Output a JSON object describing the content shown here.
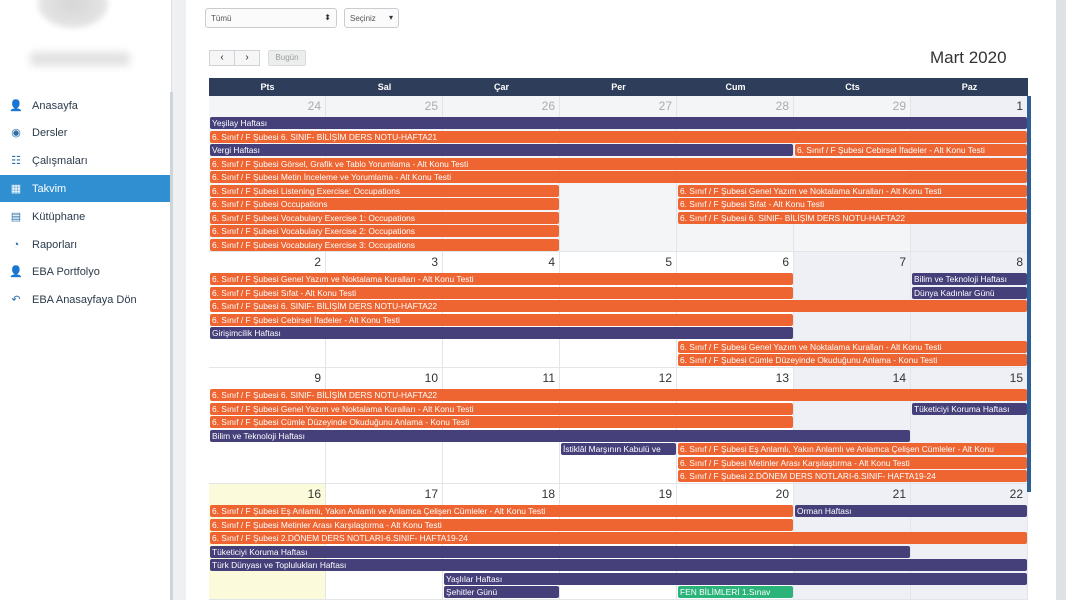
{
  "sidebar": {
    "items": [
      {
        "label": "Anasayfa",
        "icon": "user-icon",
        "glyph": "👤"
      },
      {
        "label": "Dersler",
        "icon": "play-circle-icon",
        "glyph": "◉"
      },
      {
        "label": "Çalışmaları",
        "icon": "search-list-icon",
        "glyph": "☷"
      },
      {
        "label": "Takvim",
        "icon": "calendar-icon",
        "glyph": "▦",
        "active": true
      },
      {
        "label": "Kütüphane",
        "icon": "library-icon",
        "glyph": "▤"
      },
      {
        "label": "Raporları",
        "icon": "pie-chart-icon",
        "glyph": "◔"
      },
      {
        "label": "EBA Portfolyo",
        "icon": "person-icon",
        "glyph": "👤"
      },
      {
        "label": "EBA Anasayfaya Dön",
        "icon": "back-arrow-icon",
        "glyph": "↶"
      }
    ]
  },
  "filters": {
    "first_select": "Tümü",
    "second_select": "Seçiniz"
  },
  "toolbar": {
    "prev": "‹",
    "next": "›",
    "today": "Bugün",
    "month_title": "Mart 2020"
  },
  "calendar": {
    "day_headers": [
      "Pts",
      "Sal",
      "Çar",
      "Per",
      "Cum",
      "Cts",
      "Paz"
    ],
    "weeks": [
      {
        "days": [
          "24",
          "25",
          "26",
          "27",
          "28",
          "29",
          "1"
        ]
      },
      {
        "days": [
          "2",
          "3",
          "4",
          "5",
          "6",
          "7",
          "8"
        ]
      },
      {
        "days": [
          "9",
          "10",
          "11",
          "12",
          "13",
          "14",
          "15"
        ]
      },
      {
        "days": [
          "16",
          "17",
          "18",
          "19",
          "20",
          "21",
          "22"
        ]
      }
    ],
    "events": [
      {
        "w": 0,
        "s": 0,
        "e": 6,
        "r": 0,
        "c": "p",
        "t": "Yeşilay Haftası"
      },
      {
        "w": 0,
        "s": 0,
        "e": 6,
        "r": 1,
        "c": "o",
        "t": "6. Sınıf / F Şubesi 6. SINIF- BİLİŞİM DERS NOTU-HAFTA21"
      },
      {
        "w": 0,
        "s": 0,
        "e": 4,
        "r": 2,
        "c": "p",
        "t": "Vergi Haftası"
      },
      {
        "w": 0,
        "s": 5,
        "e": 6,
        "r": 2,
        "c": "o",
        "t": "6. Sınıf / F Şubesi Cebirsel İfadeler - Alt Konu Testi"
      },
      {
        "w": 0,
        "s": 0,
        "e": 6,
        "r": 3,
        "c": "o",
        "t": "6. Sınıf / F Şubesi Görsel, Grafik ve Tablo Yorumlama - Alt Konu Testi"
      },
      {
        "w": 0,
        "s": 0,
        "e": 6,
        "r": 4,
        "c": "o",
        "t": "6. Sınıf / F Şubesi Metin İnceleme ve Yorumlama - Alt Konu Testi"
      },
      {
        "w": 0,
        "s": 0,
        "e": 2,
        "r": 5,
        "c": "o",
        "t": "6. Sınıf / F Şubesi Listening Exercise: Occupations"
      },
      {
        "w": 0,
        "s": 4,
        "e": 6,
        "r": 5,
        "c": "o",
        "t": "6. Sınıf / F Şubesi Genel Yazım ve Noktalama Kuralları - Alt Konu Testi"
      },
      {
        "w": 0,
        "s": 0,
        "e": 2,
        "r": 6,
        "c": "o",
        "t": "6. Sınıf / F Şubesi Occupations"
      },
      {
        "w": 0,
        "s": 4,
        "e": 6,
        "r": 6,
        "c": "o",
        "t": "6. Sınıf / F Şubesi Sıfat - Alt Konu Testi"
      },
      {
        "w": 0,
        "s": 0,
        "e": 2,
        "r": 7,
        "c": "o",
        "t": "6. Sınıf / F Şubesi Vocabulary Exercise 1: Occupations"
      },
      {
        "w": 0,
        "s": 4,
        "e": 6,
        "r": 7,
        "c": "o",
        "t": "6. Sınıf / F Şubesi 6. SINIF- BİLİŞİM DERS NOTU-HAFTA22"
      },
      {
        "w": 0,
        "s": 0,
        "e": 2,
        "r": 8,
        "c": "o",
        "t": "6. Sınıf / F Şubesi Vocabulary Exercise 2: Occupations"
      },
      {
        "w": 0,
        "s": 0,
        "e": 2,
        "r": 9,
        "c": "o",
        "t": "6. Sınıf / F Şubesi Vocabulary Exercise 3: Occupations"
      },
      {
        "w": 1,
        "s": 0,
        "e": 4,
        "r": 0,
        "c": "o",
        "t": "6. Sınıf / F Şubesi Genel Yazım ve Noktalama Kuralları - Alt Konu Testi"
      },
      {
        "w": 1,
        "s": 6,
        "e": 6,
        "r": 0,
        "c": "p",
        "t": "Bilim ve Teknoloji Haftası"
      },
      {
        "w": 1,
        "s": 0,
        "e": 4,
        "r": 1,
        "c": "o",
        "t": "6. Sınıf / F Şubesi Sıfat - Alt Konu Testi"
      },
      {
        "w": 1,
        "s": 6,
        "e": 6,
        "r": 1,
        "c": "p",
        "t": "Dünya Kadınlar Günü"
      },
      {
        "w": 1,
        "s": 0,
        "e": 6,
        "r": 2,
        "c": "o",
        "t": "6. Sınıf / F Şubesi 6. SINIF- BİLİŞİM DERS NOTU-HAFTA22"
      },
      {
        "w": 1,
        "s": 0,
        "e": 4,
        "r": 3,
        "c": "o",
        "t": "6. Sınıf / F Şubesi Cebirsel İfadeler - Alt Konu Testi"
      },
      {
        "w": 1,
        "s": 0,
        "e": 4,
        "r": 4,
        "c": "p",
        "t": "Girişimcilik Haftası"
      },
      {
        "w": 1,
        "s": 4,
        "e": 6,
        "r": 5,
        "c": "o",
        "t": "6. Sınıf / F Şubesi Genel Yazım ve Noktalama Kuralları - Alt Konu Testi"
      },
      {
        "w": 1,
        "s": 4,
        "e": 6,
        "r": 6,
        "c": "o",
        "t": "6. Sınıf / F Şubesi Cümle Düzeyinde Okuduğunu Anlama - Konu Testi"
      },
      {
        "w": 2,
        "s": 0,
        "e": 6,
        "r": 0,
        "c": "o",
        "t": "6. Sınıf / F Şubesi 6. SINIF- BİLİŞİM DERS NOTU-HAFTA22"
      },
      {
        "w": 2,
        "s": 0,
        "e": 4,
        "r": 1,
        "c": "o",
        "t": "6. Sınıf / F Şubesi Genel Yazım ve Noktalama Kuralları - Alt Konu Testi"
      },
      {
        "w": 2,
        "s": 6,
        "e": 6,
        "r": 1,
        "c": "p",
        "t": "Tüketiciyi Koruma Haftası"
      },
      {
        "w": 2,
        "s": 0,
        "e": 4,
        "r": 2,
        "c": "o",
        "t": "6. Sınıf / F Şubesi Cümle Düzeyinde Okuduğunu Anlama - Konu Testi"
      },
      {
        "w": 2,
        "s": 0,
        "e": 5,
        "r": 3,
        "c": "p",
        "t": "Bilim ve Teknoloji Haftası"
      },
      {
        "w": 2,
        "s": 3,
        "e": 3,
        "r": 4,
        "c": "p",
        "t": "İstiklâl Marşının Kabulü ve"
      },
      {
        "w": 2,
        "s": 4,
        "e": 6,
        "r": 4,
        "c": "o",
        "t": "6. Sınıf / F Şubesi Eş Anlamlı, Yakın Anlamlı ve Anlamca Çelişen Cümleler - Alt Konu"
      },
      {
        "w": 2,
        "s": 4,
        "e": 6,
        "r": 5,
        "c": "o",
        "t": "6. Sınıf / F Şubesi Metinler Arası Karşılaştırma - Alt Konu Testi"
      },
      {
        "w": 2,
        "s": 4,
        "e": 6,
        "r": 6,
        "c": "o",
        "t": "6. Sınıf / F Şubesi 2.DÖNEM DERS NOTLARI-6.SINIF- HAFTA19-24"
      },
      {
        "w": 3,
        "s": 0,
        "e": 4,
        "r": 0,
        "c": "o",
        "t": "6. Sınıf / F Şubesi Eş Anlamlı, Yakın Anlamlı ve Anlamca Çelişen Cümleler - Alt Konu Testi"
      },
      {
        "w": 3,
        "s": 5,
        "e": 6,
        "r": 0,
        "c": "p",
        "t": "Orman Haftası"
      },
      {
        "w": 3,
        "s": 0,
        "e": 4,
        "r": 1,
        "c": "o",
        "t": "6. Sınıf / F Şubesi Metinler Arası Karşılaştırma - Alt Konu Testi"
      },
      {
        "w": 3,
        "s": 0,
        "e": 6,
        "r": 2,
        "c": "o",
        "t": "6. Sınıf / F Şubesi 2.DÖNEM DERS NOTLARI-6.SINIF- HAFTA19-24"
      },
      {
        "w": 3,
        "s": 0,
        "e": 5,
        "r": 3,
        "c": "p",
        "t": "Tüketiciyi Koruma Haftası"
      },
      {
        "w": 3,
        "s": 0,
        "e": 6,
        "r": 4,
        "c": "p",
        "t": "Türk Dünyası ve Toplulukları Haftası"
      },
      {
        "w": 3,
        "s": 2,
        "e": 6,
        "r": 5,
        "c": "p",
        "t": "Yaşlılar Haftası"
      },
      {
        "w": 3,
        "s": 2,
        "e": 2,
        "r": 6,
        "c": "p",
        "t": "Şehitler Günü"
      },
      {
        "w": 3,
        "s": 4,
        "e": 4,
        "r": 6,
        "c": "g",
        "t": "FEN BİLİMLERİ 1.Sınav"
      }
    ]
  }
}
